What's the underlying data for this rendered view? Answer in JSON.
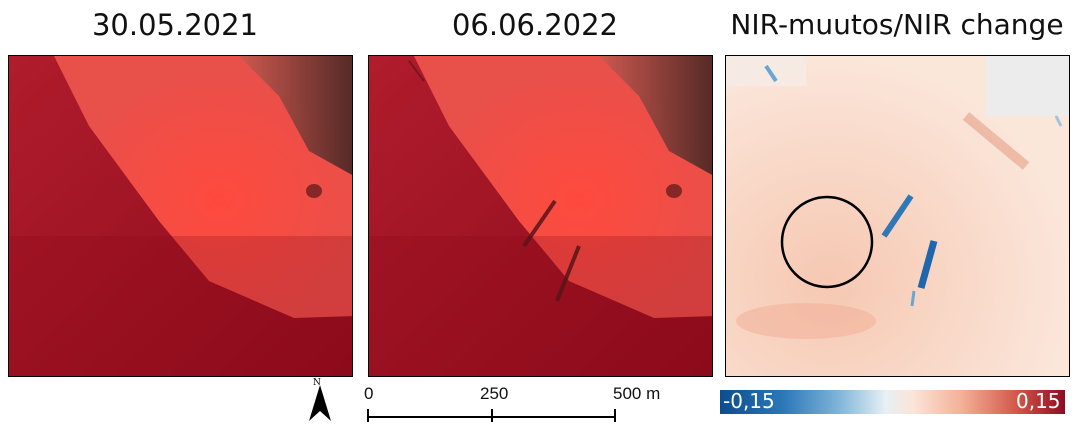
{
  "panels": [
    {
      "title": "30.05.2021"
    },
    {
      "title": "06.06.2022"
    },
    {
      "title": "NIR-muutos/NIR change"
    }
  ],
  "scale_bar": {
    "labels": [
      "0",
      "250",
      "500 m"
    ]
  },
  "north_arrow": {
    "letter": "N",
    "icon": "north-arrow-icon"
  },
  "colorbar": {
    "min_label": "-0,15",
    "max_label": "0,15",
    "min_color": "#0c4d8e",
    "mid_color": "#f2f2f2",
    "max_color": "#8e0c22"
  }
}
